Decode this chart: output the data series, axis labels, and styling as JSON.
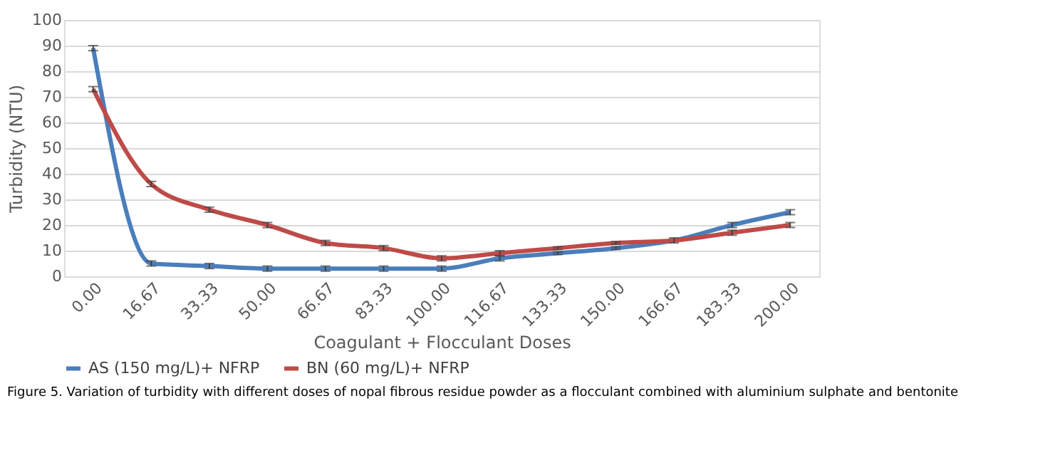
{
  "chart_data": {
    "type": "line",
    "xlabel": "Coagulant + Flocculant Doses",
    "ylabel": "Turbidity (NTU)",
    "categories": [
      "0.00",
      "16.67",
      "33.33",
      "50.00",
      "66.67",
      "83.33",
      "100.00",
      "116.67",
      "133.33",
      "150.00",
      "166.67",
      "183.33",
      "200.00"
    ],
    "series": [
      {
        "name": "AS (150 mg/L)+ NFRP",
        "color": "#4a7ebb",
        "values": [
          89,
          5,
          4,
          3,
          3,
          3,
          3,
          7,
          9,
          11,
          14,
          20,
          25
        ],
        "errors": [
          1,
          1,
          1,
          1,
          1,
          1,
          1,
          1,
          0.5,
          0.5,
          null,
          1,
          1
        ]
      },
      {
        "name": "BN (60 mg/L)+ NFRP",
        "color": "#be4b48",
        "values": [
          73,
          36,
          26,
          20,
          13,
          11,
          7,
          9,
          11,
          13,
          14,
          17,
          20
        ],
        "errors": [
          1,
          1,
          1,
          1,
          1,
          1,
          1,
          1,
          0.5,
          0.5,
          1,
          1,
          1
        ]
      }
    ],
    "ylim": [
      0,
      100
    ],
    "yticks": [
      0,
      10,
      20,
      30,
      40,
      50,
      60,
      70,
      80,
      90,
      100
    ],
    "grid": "y",
    "legend": "bottom",
    "marker": "none",
    "line_style": "solid",
    "annotations": [
      "Figure 5. Variation of turbidity with different doses of nopal fibrous residue powder as a flocculant combined with aluminium sulphate and bentonite"
    ]
  }
}
